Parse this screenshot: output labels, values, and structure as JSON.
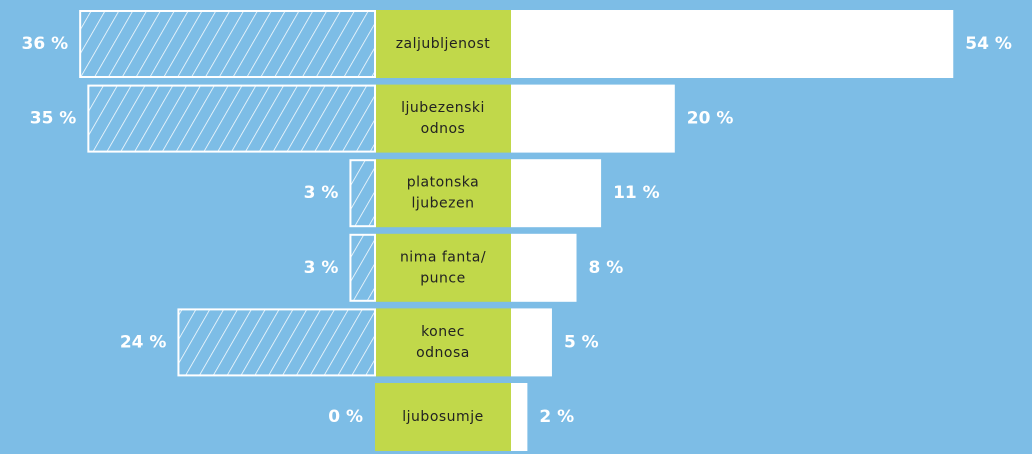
{
  "chart_data": {
    "type": "diverging_bar",
    "categories": [
      [
        "zaljubljenost"
      ],
      [
        "ljubezenski",
        "odnos"
      ],
      [
        "platonska",
        "ljubezen"
      ],
      [
        "nima fanta/",
        "punce"
      ],
      [
        "konec",
        "odnosa"
      ],
      [
        "ljubosumje"
      ]
    ],
    "series": [
      {
        "color": "#ffffff",
        "hatched": true,
        "values": [
          36,
          35,
          3,
          3,
          24,
          0
        ],
        "value_labels": [
          "36 %",
          "35 %",
          "3 %",
          "3 %",
          "24 %",
          "0 %"
        ]
      },
      {
        "color": "#ffffff",
        "hatched": false,
        "values": [
          54,
          20,
          11,
          8,
          5,
          2
        ],
        "value_labels": [
          "54 %",
          "20 %",
          "11 %",
          "8 %",
          "5 %",
          "2 %"
        ]
      }
    ],
    "label_color": "#c1d84a"
  }
}
